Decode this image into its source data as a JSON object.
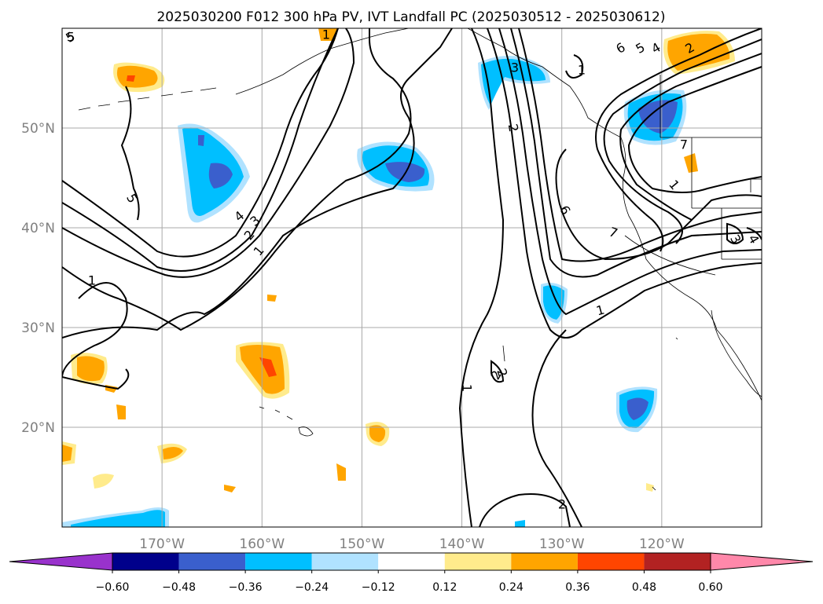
{
  "title": "2025030200 F012 300 hPa PV, IVT Landfall PC (2025030512 - 2025030612)",
  "map": {
    "lon_range": [
      -180,
      -110
    ],
    "lat_range": [
      10,
      60
    ],
    "lon_ticks": [
      -170,
      -160,
      -150,
      -140,
      -130,
      -120
    ],
    "lat_ticks": [
      20,
      30,
      40,
      50
    ],
    "lon_labels": [
      "170°W",
      "160°W",
      "150°W",
      "140°W",
      "130°W",
      "120°W"
    ],
    "lat_labels": [
      "20°N",
      "30°N",
      "40°N",
      "50°N"
    ],
    "grid": true,
    "label_color": "#808080"
  },
  "contours": {
    "labels": [
      "5",
      "5",
      "4",
      "3",
      "2",
      "1",
      "1",
      "2",
      "3",
      "2",
      "1",
      "1",
      "1",
      "2",
      "2",
      "6",
      "5",
      "4",
      "2",
      "1",
      "6",
      "7",
      "1",
      "3",
      "4",
      "7",
      "5"
    ]
  },
  "colorbar": {
    "ticks": [
      "−0.60",
      "−0.48",
      "−0.36",
      "−0.24",
      "−0.12",
      "0.12",
      "0.24",
      "0.36",
      "0.48",
      "0.60"
    ],
    "colors": [
      "#9932cc",
      "#00008b",
      "#3a5fcd",
      "#00bfff",
      "#b0e2ff",
      "#ffffff",
      "#ffeb8c",
      "#ffa500",
      "#ff4500",
      "#b22222",
      "#ff88aa"
    ]
  }
}
